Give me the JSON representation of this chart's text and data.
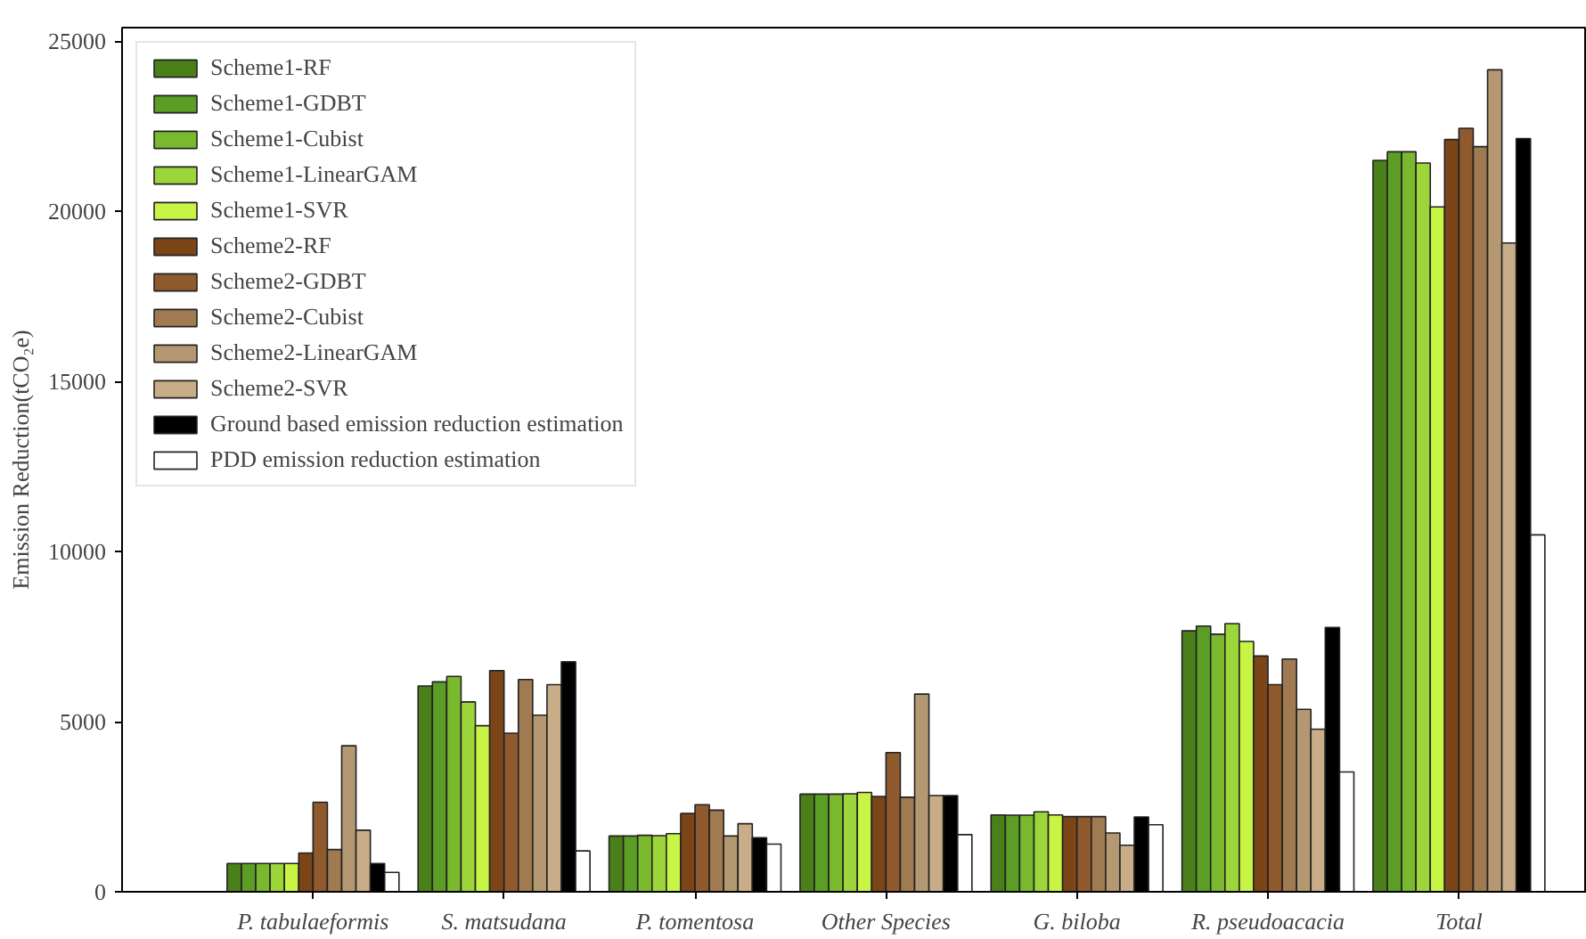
{
  "chart_data": {
    "type": "bar",
    "ylabel": "Emission Reduction(tCO₂e)",
    "categories": [
      "P. tabulaeformis",
      "S. matsudana",
      "P. tomentosa",
      "Other Species",
      "G. biloba",
      "R. pseudoacacia",
      "Total"
    ],
    "series": [
      {
        "name": "Scheme1-RF",
        "color": "#4a7f1a",
        "values": [
          830,
          6050,
          1640,
          2870,
          2260,
          7670,
          21500
        ]
      },
      {
        "name": "Scheme1-GDBT",
        "color": "#5c9e25",
        "values": [
          830,
          6170,
          1640,
          2870,
          2250,
          7810,
          21750
        ]
      },
      {
        "name": "Scheme1-Cubist",
        "color": "#7ab92e",
        "values": [
          830,
          6330,
          1660,
          2870,
          2250,
          7570,
          21750
        ]
      },
      {
        "name": "Scheme1-LinearGAM",
        "color": "#9cd63a",
        "values": [
          830,
          5580,
          1650,
          2880,
          2350,
          7880,
          21420
        ]
      },
      {
        "name": "Scheme1-SVR",
        "color": "#c8f545",
        "values": [
          830,
          4880,
          1710,
          2920,
          2260,
          7360,
          20130
        ]
      },
      {
        "name": "Scheme2-RF",
        "color": "#7b4518",
        "values": [
          1140,
          6500,
          2300,
          2800,
          2210,
          6930,
          22110
        ]
      },
      {
        "name": "Scheme2-GDBT",
        "color": "#8e5a2e",
        "values": [
          2630,
          4660,
          2560,
          4090,
          2210,
          6090,
          22440
        ]
      },
      {
        "name": "Scheme2-Cubist",
        "color": "#a07a50",
        "values": [
          1240,
          6240,
          2400,
          2780,
          2210,
          6840,
          21900
        ]
      },
      {
        "name": "Scheme2-LinearGAM",
        "color": "#b49872",
        "values": [
          4290,
          5190,
          1640,
          5810,
          1730,
          5360,
          24160
        ]
      },
      {
        "name": "Scheme2-SVR",
        "color": "#c8ad88",
        "values": [
          1810,
          6090,
          2000,
          2830,
          1370,
          4780,
          19070
        ]
      },
      {
        "name": "Ground based emission reduction estimation",
        "color": "#000000",
        "values": [
          830,
          6760,
          1590,
          2830,
          2200,
          7770,
          22140
        ]
      },
      {
        "name": "PDD emission reduction estimation",
        "color": "#ffffff",
        "values": [
          570,
          1200,
          1400,
          1680,
          1970,
          3520,
          10490
        ]
      }
    ],
    "ylim": [
      0,
      25400
    ],
    "yticks": [
      0,
      5000,
      10000,
      15000,
      20000,
      25000
    ],
    "grid": false,
    "legend": "top left"
  }
}
